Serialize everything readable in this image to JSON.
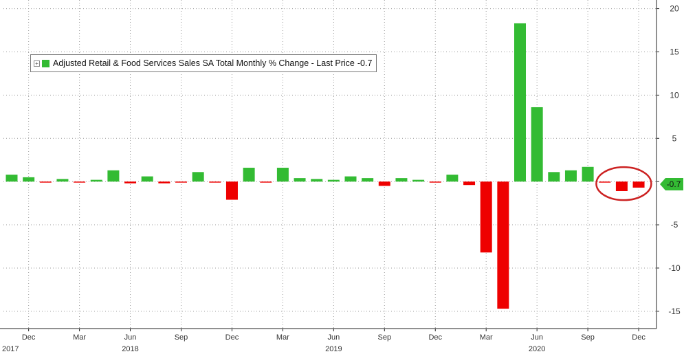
{
  "chart_data": {
    "type": "bar",
    "title": "Adjusted Retail & Food Services Sales SA Total Monthly % Change",
    "legend": {
      "label": "Adjusted Retail & Food Services Sales SA Total Monthly % Change - Last Price",
      "last_value": "-0.7",
      "placement": "top-left"
    },
    "last_price_tag": "-0.7",
    "ylim": [
      -17,
      21
    ],
    "y_ticks": [
      20,
      15,
      10,
      5,
      0,
      -5,
      -10,
      -15
    ],
    "y_axis_side": "right",
    "grid": true,
    "colors": {
      "positive": "#33bb33",
      "negative": "#ee0000",
      "highlight_circle": "#cc2222"
    },
    "x": [
      "2017-11",
      "2017-12",
      "2018-01",
      "2018-02",
      "2018-03",
      "2018-04",
      "2018-05",
      "2018-06",
      "2018-07",
      "2018-08",
      "2018-09",
      "2018-10",
      "2018-11",
      "2018-12",
      "2019-01",
      "2019-02",
      "2019-03",
      "2019-04",
      "2019-05",
      "2019-06",
      "2019-07",
      "2019-08",
      "2019-09",
      "2019-10",
      "2019-11",
      "2019-12",
      "2020-01",
      "2020-02",
      "2020-03",
      "2020-04",
      "2020-05",
      "2020-06",
      "2020-07",
      "2020-08",
      "2020-09",
      "2020-10",
      "2020-11",
      "2020-12"
    ],
    "values": [
      0.8,
      0.5,
      -0.1,
      0.3,
      -0.1,
      0.2,
      1.3,
      -0.2,
      0.6,
      -0.2,
      -0.1,
      1.1,
      -0.1,
      -2.1,
      1.6,
      -0.1,
      1.6,
      0.4,
      0.3,
      0.2,
      0.6,
      0.4,
      -0.5,
      0.4,
      0.2,
      -0.1,
      0.8,
      -0.4,
      -8.2,
      -14.7,
      18.3,
      8.6,
      1.1,
      1.3,
      1.7,
      -0.1,
      -1.1,
      -0.7
    ],
    "x_tick_labels": [
      {
        "label": "Dec",
        "month": "2017-12"
      },
      {
        "label": "Mar",
        "month": "2018-03"
      },
      {
        "label": "Jun",
        "month": "2018-06"
      },
      {
        "label": "Sep",
        "month": "2018-09"
      },
      {
        "label": "Dec",
        "month": "2018-12"
      },
      {
        "label": "Mar",
        "month": "2019-03"
      },
      {
        "label": "Jun",
        "month": "2019-06"
      },
      {
        "label": "Sep",
        "month": "2019-09"
      },
      {
        "label": "Dec",
        "month": "2019-12"
      },
      {
        "label": "Mar",
        "month": "2020-03"
      },
      {
        "label": "Jun",
        "month": "2020-06"
      },
      {
        "label": "Sep",
        "month": "2020-09"
      },
      {
        "label": "Dec",
        "month": "2020-12"
      }
    ],
    "year_labels": [
      {
        "label": "2017",
        "month": "2017-11"
      },
      {
        "label": "2018",
        "month": "2018-06"
      },
      {
        "label": "2019",
        "month": "2019-06"
      },
      {
        "label": "2020",
        "month": "2020-06"
      }
    ],
    "annotation": {
      "type": "circle",
      "months": [
        "2020-10",
        "2020-11",
        "2020-12"
      ]
    }
  }
}
